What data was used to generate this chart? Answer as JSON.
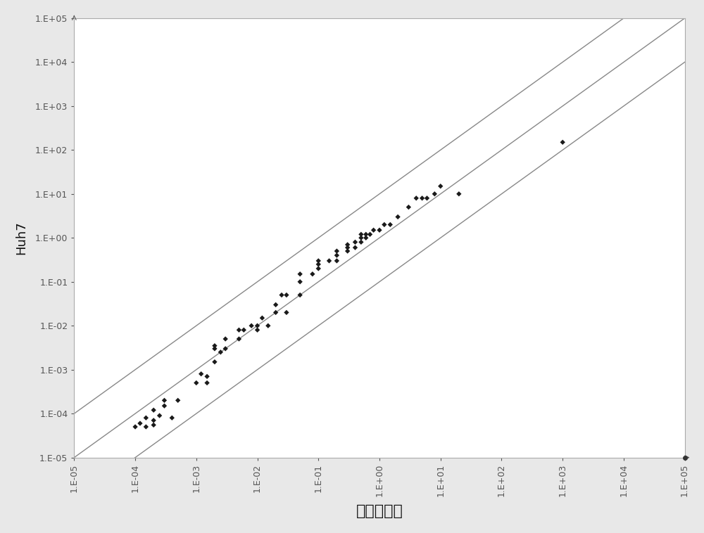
{
  "title": "",
  "xlabel": "肝正常细胞",
  "ylabel": "Huh7",
  "background_color": "#e8e8e8",
  "plot_bg_color": "#ffffff",
  "scatter_color": "#1a1a1a",
  "line_color": "#888888",
  "line_width": 1.0,
  "scatter_size": 14,
  "scatter_marker": "D",
  "scatter_points": [
    [
      0.0001,
      5e-05
    ],
    [
      0.00012,
      6e-05
    ],
    [
      0.00015,
      5e-05
    ],
    [
      0.00015,
      8e-05
    ],
    [
      0.0002,
      5.5e-05
    ],
    [
      0.0002,
      7e-05
    ],
    [
      0.0002,
      0.00012
    ],
    [
      0.00025,
      9e-05
    ],
    [
      0.0003,
      0.00015
    ],
    [
      0.0003,
      0.0002
    ],
    [
      0.0004,
      8e-05
    ],
    [
      0.0005,
      0.0002
    ],
    [
      0.001,
      0.0005
    ],
    [
      0.0012,
      0.0008
    ],
    [
      0.0015,
      0.0005
    ],
    [
      0.0015,
      0.0007
    ],
    [
      0.002,
      0.0015
    ],
    [
      0.002,
      0.003
    ],
    [
      0.002,
      0.0035
    ],
    [
      0.0025,
      0.0025
    ],
    [
      0.003,
      0.003
    ],
    [
      0.003,
      0.005
    ],
    [
      0.005,
      0.005
    ],
    [
      0.005,
      0.008
    ],
    [
      0.006,
      0.008
    ],
    [
      0.008,
      0.01
    ],
    [
      0.01,
      0.008
    ],
    [
      0.01,
      0.01
    ],
    [
      0.012,
      0.015
    ],
    [
      0.015,
      0.01
    ],
    [
      0.02,
      0.02
    ],
    [
      0.02,
      0.03
    ],
    [
      0.025,
      0.05
    ],
    [
      0.03,
      0.02
    ],
    [
      0.03,
      0.05
    ],
    [
      0.05,
      0.05
    ],
    [
      0.05,
      0.1
    ],
    [
      0.05,
      0.15
    ],
    [
      0.08,
      0.15
    ],
    [
      0.1,
      0.2
    ],
    [
      0.1,
      0.25
    ],
    [
      0.1,
      0.3
    ],
    [
      0.15,
      0.3
    ],
    [
      0.2,
      0.3
    ],
    [
      0.2,
      0.4
    ],
    [
      0.2,
      0.5
    ],
    [
      0.3,
      0.5
    ],
    [
      0.3,
      0.6
    ],
    [
      0.3,
      0.7
    ],
    [
      0.4,
      0.6
    ],
    [
      0.4,
      0.8
    ],
    [
      0.5,
      0.8
    ],
    [
      0.5,
      1.0
    ],
    [
      0.5,
      1.2
    ],
    [
      0.6,
      1.0
    ],
    [
      0.6,
      1.2
    ],
    [
      0.7,
      1.2
    ],
    [
      0.8,
      1.5
    ],
    [
      1.0,
      1.5
    ],
    [
      1.2,
      2.0
    ],
    [
      1.5,
      2.0
    ],
    [
      2.0,
      3.0
    ],
    [
      3.0,
      5.0
    ],
    [
      4.0,
      8.0
    ],
    [
      5.0,
      8.0
    ],
    [
      6.0,
      8.0
    ],
    [
      8.0,
      10.0
    ],
    [
      10.0,
      15.0
    ],
    [
      20.0,
      10.0
    ],
    [
      1000.0,
      150.0
    ]
  ],
  "ytick_labels": [
    "1.E-05",
    "1.E-04",
    "1.E-03",
    "1.E-02",
    "1.E-01",
    "1.E+00",
    "1.E+01",
    "1.E+02",
    "1.E+03",
    "1.E+04",
    "1.E+05"
  ],
  "xtick_labels": [
    "1.E-05",
    "1.E-04",
    "1.E-03",
    "1.E-02",
    "1.E-01",
    "1.E+00",
    "1.E+01",
    "1.E+02",
    "1.E+03",
    "1.E+04",
    "1.E+05"
  ]
}
